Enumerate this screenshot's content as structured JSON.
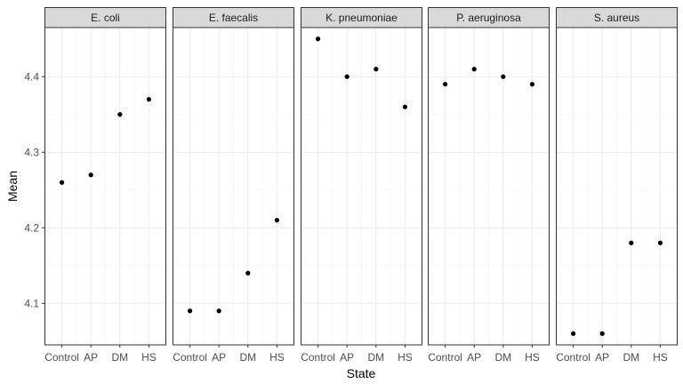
{
  "chart_data": {
    "type": "scatter",
    "xlabel": "State",
    "ylabel": "Mean",
    "categories": [
      "Control",
      "AP",
      "DM",
      "HS"
    ],
    "ylim": [
      4.045,
      4.465
    ],
    "yticks": [
      4.1,
      4.2,
      4.3,
      4.4
    ],
    "ytick_labels": [
      "4.1",
      "4.2",
      "4.3",
      "4.4"
    ],
    "grid": true,
    "panels": [
      {
        "name": "E. coli",
        "values": [
          4.26,
          4.27,
          4.35,
          4.37
        ]
      },
      {
        "name": "E. faecalis",
        "values": [
          4.09,
          4.09,
          4.14,
          4.21
        ]
      },
      {
        "name": "K. pneumoniae",
        "values": [
          4.45,
          4.4,
          4.41,
          4.36
        ]
      },
      {
        "name": "P. aeruginosa",
        "values": [
          4.39,
          4.41,
          4.4,
          4.39
        ]
      },
      {
        "name": "S. aureus",
        "values": [
          4.06,
          4.06,
          4.18,
          4.18
        ]
      }
    ],
    "colors": {
      "point": "#000000",
      "strip_fill": "#d9d9d9",
      "border": "#333333",
      "grid_major": "#ebebeb",
      "grid_minor": "#f5f5f5"
    }
  }
}
